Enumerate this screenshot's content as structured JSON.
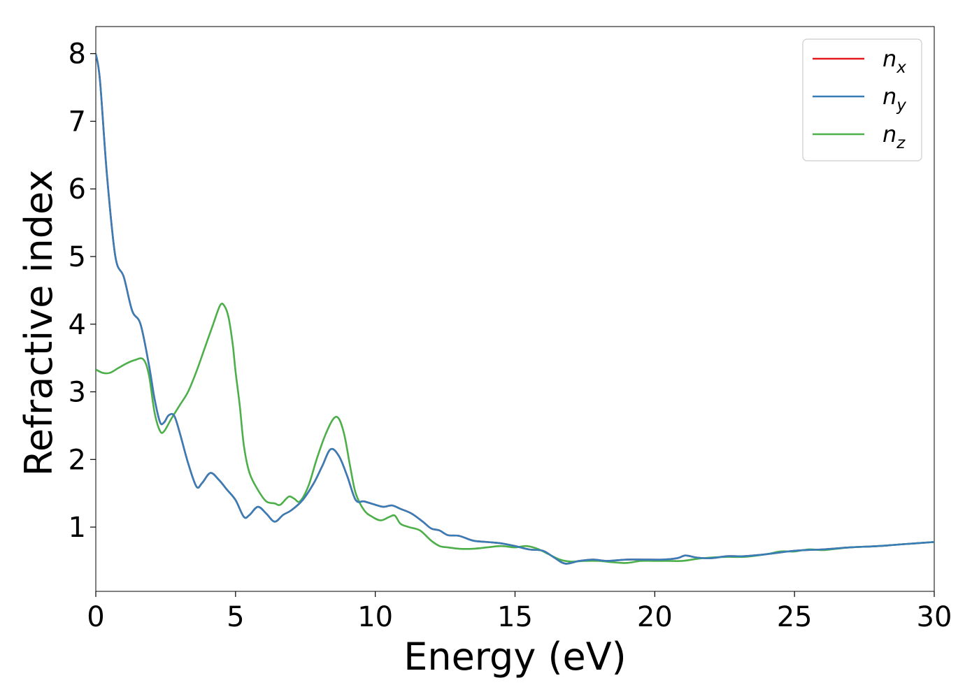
{
  "chart_data": {
    "type": "line",
    "title": "",
    "xlabel": "Energy (eV)",
    "ylabel": "Refractive index",
    "xlim": [
      0,
      30
    ],
    "ylim": [
      0.05,
      8.4
    ],
    "xticks": [
      0,
      5,
      10,
      15,
      20,
      25,
      30
    ],
    "xtick_labels": [
      "0",
      "5",
      "10",
      "15",
      "20",
      "25",
      "30"
    ],
    "yticks": [
      1,
      2,
      3,
      4,
      5,
      6,
      7,
      8
    ],
    "ytick_labels": [
      "1",
      "2",
      "3",
      "4",
      "5",
      "6",
      "7",
      "8"
    ],
    "grid": false,
    "legend_position": "top-right",
    "series": [
      {
        "name": "n",
        "subscript": "x",
        "color": "#e41a1c",
        "x": [
          0,
          0.15,
          0.4,
          0.7,
          1.0,
          1.3,
          1.6,
          1.9,
          2.1,
          2.3,
          2.45,
          2.6,
          2.8,
          3.0,
          3.3,
          3.6,
          3.8,
          4.1,
          4.4,
          4.7,
          5.0,
          5.3,
          5.5,
          5.8,
          6.1,
          6.4,
          6.7,
          7.0,
          7.4,
          7.8,
          8.1,
          8.4,
          8.7,
          9.0,
          9.3,
          9.6,
          10.0,
          10.3,
          10.6,
          10.9,
          11.3,
          11.7,
          12.0,
          12.3,
          12.6,
          13.0,
          13.5,
          14.0,
          14.5,
          15.0,
          15.5,
          16.0,
          16.4,
          16.8,
          17.3,
          17.8,
          18.3,
          19.0,
          19.6,
          20.3,
          20.8,
          21.1,
          21.5,
          22.0,
          22.6,
          23.2,
          24.0,
          25.0,
          26.0,
          27.0,
          28.0,
          29.0,
          30.0
        ],
        "y": [
          8.0,
          7.6,
          6.2,
          5.0,
          4.7,
          4.2,
          4.0,
          3.4,
          2.9,
          2.55,
          2.55,
          2.65,
          2.65,
          2.4,
          1.95,
          1.6,
          1.65,
          1.8,
          1.7,
          1.55,
          1.4,
          1.15,
          1.18,
          1.3,
          1.2,
          1.08,
          1.18,
          1.25,
          1.4,
          1.65,
          1.9,
          2.15,
          2.05,
          1.75,
          1.4,
          1.38,
          1.33,
          1.3,
          1.32,
          1.27,
          1.2,
          1.08,
          0.98,
          0.95,
          0.88,
          0.87,
          0.8,
          0.78,
          0.76,
          0.72,
          0.67,
          0.65,
          0.55,
          0.46,
          0.5,
          0.52,
          0.5,
          0.52,
          0.52,
          0.52,
          0.54,
          0.58,
          0.55,
          0.54,
          0.57,
          0.57,
          0.6,
          0.65,
          0.67,
          0.7,
          0.72,
          0.75,
          0.78
        ]
      },
      {
        "name": "n",
        "subscript": "y",
        "color": "#377eb8",
        "x": [
          0,
          0.15,
          0.4,
          0.7,
          1.0,
          1.3,
          1.6,
          1.9,
          2.1,
          2.3,
          2.45,
          2.6,
          2.8,
          3.0,
          3.3,
          3.6,
          3.8,
          4.1,
          4.4,
          4.7,
          5.0,
          5.3,
          5.5,
          5.8,
          6.1,
          6.4,
          6.7,
          7.0,
          7.4,
          7.8,
          8.1,
          8.4,
          8.7,
          9.0,
          9.3,
          9.6,
          10.0,
          10.3,
          10.6,
          10.9,
          11.3,
          11.7,
          12.0,
          12.3,
          12.6,
          13.0,
          13.5,
          14.0,
          14.5,
          15.0,
          15.5,
          16.0,
          16.4,
          16.8,
          17.3,
          17.8,
          18.3,
          19.0,
          19.6,
          20.3,
          20.8,
          21.1,
          21.5,
          22.0,
          22.6,
          23.2,
          24.0,
          25.0,
          26.0,
          27.0,
          28.0,
          29.0,
          30.0
        ],
        "y": [
          8.0,
          7.6,
          6.2,
          5.0,
          4.7,
          4.2,
          4.0,
          3.4,
          2.9,
          2.55,
          2.55,
          2.65,
          2.65,
          2.4,
          1.95,
          1.6,
          1.65,
          1.8,
          1.7,
          1.55,
          1.4,
          1.15,
          1.18,
          1.3,
          1.2,
          1.08,
          1.18,
          1.25,
          1.4,
          1.65,
          1.9,
          2.15,
          2.05,
          1.75,
          1.4,
          1.38,
          1.33,
          1.3,
          1.32,
          1.27,
          1.2,
          1.08,
          0.98,
          0.95,
          0.88,
          0.87,
          0.8,
          0.78,
          0.76,
          0.72,
          0.67,
          0.65,
          0.55,
          0.46,
          0.5,
          0.52,
          0.5,
          0.52,
          0.52,
          0.52,
          0.54,
          0.58,
          0.55,
          0.54,
          0.57,
          0.57,
          0.6,
          0.65,
          0.67,
          0.7,
          0.72,
          0.75,
          0.78
        ]
      },
      {
        "name": "n",
        "subscript": "z",
        "color": "#4daf4a",
        "x": [
          0,
          0.25,
          0.5,
          0.8,
          1.1,
          1.4,
          1.7,
          1.9,
          2.1,
          2.3,
          2.45,
          2.7,
          3.0,
          3.3,
          3.6,
          3.9,
          4.2,
          4.45,
          4.6,
          4.75,
          4.9,
          5.0,
          5.15,
          5.3,
          5.5,
          5.8,
          6.1,
          6.4,
          6.6,
          6.9,
          7.1,
          7.3,
          7.6,
          7.9,
          8.2,
          8.5,
          8.7,
          8.9,
          9.1,
          9.3,
          9.6,
          9.9,
          10.2,
          10.5,
          10.7,
          10.9,
          11.2,
          11.6,
          12.0,
          12.3,
          12.6,
          13.0,
          13.5,
          14.0,
          14.5,
          15.0,
          15.4,
          15.8,
          16.2,
          16.6,
          17.0,
          17.5,
          18.0,
          18.5,
          19.0,
          19.5,
          20.0,
          20.5,
          21.0,
          21.5,
          22.0,
          22.6,
          23.2,
          24.0,
          24.5,
          25.0,
          25.5,
          26.0,
          26.5,
          27.0,
          28.0,
          29.0,
          30.0
        ],
        "y": [
          3.33,
          3.28,
          3.28,
          3.35,
          3.42,
          3.47,
          3.48,
          3.25,
          2.7,
          2.42,
          2.42,
          2.6,
          2.8,
          3.0,
          3.3,
          3.65,
          4.0,
          4.28,
          4.27,
          4.1,
          3.7,
          3.3,
          2.8,
          2.2,
          1.8,
          1.55,
          1.38,
          1.35,
          1.33,
          1.45,
          1.42,
          1.38,
          1.6,
          2.0,
          2.35,
          2.6,
          2.6,
          2.35,
          1.9,
          1.5,
          1.25,
          1.15,
          1.1,
          1.15,
          1.17,
          1.05,
          1.0,
          0.95,
          0.8,
          0.72,
          0.7,
          0.68,
          0.68,
          0.7,
          0.72,
          0.7,
          0.72,
          0.68,
          0.6,
          0.52,
          0.49,
          0.5,
          0.5,
          0.48,
          0.47,
          0.5,
          0.5,
          0.5,
          0.5,
          0.53,
          0.55,
          0.56,
          0.56,
          0.6,
          0.64,
          0.64,
          0.67,
          0.66,
          0.68,
          0.7,
          0.72,
          0.75,
          0.78
        ]
      }
    ]
  }
}
